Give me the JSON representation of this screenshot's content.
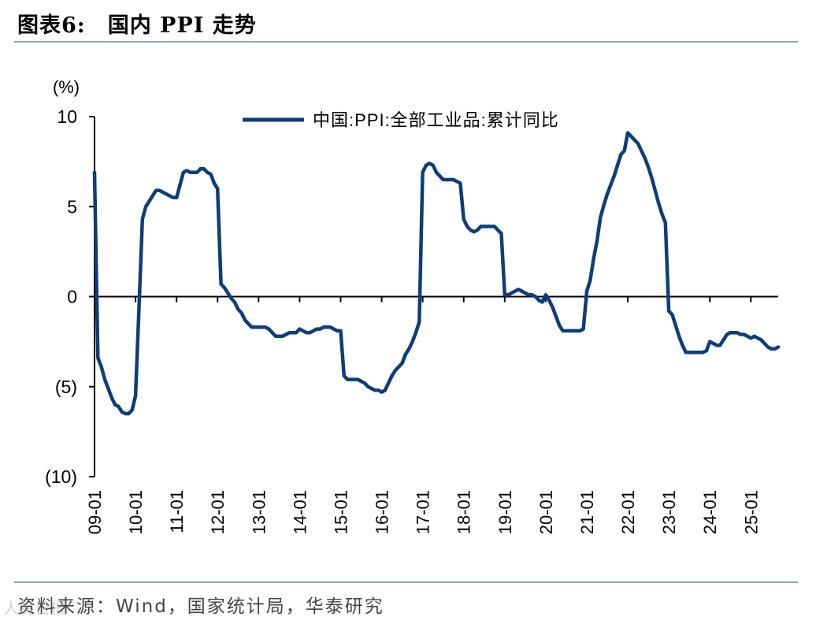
{
  "header": {
    "figure_no": "图表6:",
    "title": "国内 PPI 走势"
  },
  "footer": {
    "source": "资料来源：Wind，国家统计局，华泰研究",
    "watermark": "人民日报"
  },
  "colors": {
    "series": "#0e3d78",
    "rule": "#8fa3bd"
  },
  "chart_data": {
    "type": "line",
    "title": "国内 PPI 走势",
    "unit_label": "(%)",
    "ylim": [
      -10,
      10
    ],
    "yticks": [
      10,
      5,
      0,
      -5,
      -10
    ],
    "ytick_labels": [
      "10",
      "5",
      "0",
      "(5)",
      "(10)"
    ],
    "xlim": [
      "2009-01",
      "2025-09"
    ],
    "xticks": [
      "09-01",
      "10-01",
      "11-01",
      "12-01",
      "13-01",
      "14-01",
      "15-01",
      "16-01",
      "17-01",
      "18-01",
      "19-01",
      "20-01",
      "21-01",
      "22-01",
      "23-01",
      "24-01",
      "25-01"
    ],
    "legend": {
      "position": "top-center"
    },
    "grid": false,
    "series": [
      {
        "name": "中国:PPI:全部工业品:累计同比",
        "points": [
          [
            "2009-01",
            6.9
          ],
          [
            "2009-02",
            -3.4
          ],
          [
            "2009-03",
            -3.9
          ],
          [
            "2009-04",
            -4.6
          ],
          [
            "2009-05",
            -5.1
          ],
          [
            "2009-06",
            -5.6
          ],
          [
            "2009-07",
            -6.0
          ],
          [
            "2009-08",
            -6.1
          ],
          [
            "2009-09",
            -6.4
          ],
          [
            "2009-10",
            -6.5
          ],
          [
            "2009-11",
            -6.5
          ],
          [
            "2009-12",
            -6.3
          ],
          [
            "2010-01",
            -5.5
          ],
          [
            "2010-02",
            -0.7
          ],
          [
            "2010-03",
            4.3
          ],
          [
            "2010-04",
            5.0
          ],
          [
            "2010-05",
            5.3
          ],
          [
            "2010-06",
            5.6
          ],
          [
            "2010-07",
            5.9
          ],
          [
            "2010-08",
            5.9
          ],
          [
            "2010-09",
            5.8
          ],
          [
            "2010-10",
            5.7
          ],
          [
            "2010-11",
            5.6
          ],
          [
            "2010-12",
            5.5
          ],
          [
            "2011-01",
            5.5
          ],
          [
            "2011-02",
            6.2
          ],
          [
            "2011-03",
            6.9
          ],
          [
            "2011-04",
            7.0
          ],
          [
            "2011-05",
            6.9
          ],
          [
            "2011-06",
            6.9
          ],
          [
            "2011-07",
            6.9
          ],
          [
            "2011-08",
            7.1
          ],
          [
            "2011-09",
            7.1
          ],
          [
            "2011-10",
            6.9
          ],
          [
            "2011-11",
            6.8
          ],
          [
            "2011-12",
            6.3
          ],
          [
            "2012-01",
            6.0
          ],
          [
            "2012-02",
            0.7
          ],
          [
            "2012-03",
            0.5
          ],
          [
            "2012-04",
            0.2
          ],
          [
            "2012-05",
            -0.1
          ],
          [
            "2012-06",
            -0.3
          ],
          [
            "2012-07",
            -0.7
          ],
          [
            "2012-08",
            -0.9
          ],
          [
            "2012-09",
            -1.3
          ],
          [
            "2012-10",
            -1.5
          ],
          [
            "2012-11",
            -1.7
          ],
          [
            "2012-12",
            -1.7
          ],
          [
            "2013-01",
            -1.7
          ],
          [
            "2013-02",
            -1.7
          ],
          [
            "2013-03",
            -1.7
          ],
          [
            "2013-04",
            -1.8
          ],
          [
            "2013-05",
            -2.0
          ],
          [
            "2013-06",
            -2.2
          ],
          [
            "2013-07",
            -2.2
          ],
          [
            "2013-08",
            -2.2
          ],
          [
            "2013-09",
            -2.1
          ],
          [
            "2013-10",
            -2.0
          ],
          [
            "2013-11",
            -2.0
          ],
          [
            "2013-12",
            -2.0
          ],
          [
            "2014-01",
            -1.8
          ],
          [
            "2014-02",
            -1.9
          ],
          [
            "2014-03",
            -2.0
          ],
          [
            "2014-04",
            -2.0
          ],
          [
            "2014-05",
            -1.9
          ],
          [
            "2014-06",
            -1.8
          ],
          [
            "2014-07",
            -1.8
          ],
          [
            "2014-08",
            -1.7
          ],
          [
            "2014-09",
            -1.7
          ],
          [
            "2014-10",
            -1.7
          ],
          [
            "2014-11",
            -1.8
          ],
          [
            "2014-12",
            -1.9
          ],
          [
            "2015-01",
            -1.9
          ],
          [
            "2015-02",
            -4.4
          ],
          [
            "2015-03",
            -4.6
          ],
          [
            "2015-04",
            -4.6
          ],
          [
            "2015-05",
            -4.6
          ],
          [
            "2015-06",
            -4.6
          ],
          [
            "2015-07",
            -4.7
          ],
          [
            "2015-08",
            -4.8
          ],
          [
            "2015-09",
            -5.0
          ],
          [
            "2015-10",
            -5.1
          ],
          [
            "2015-11",
            -5.2
          ],
          [
            "2015-12",
            -5.2
          ],
          [
            "2016-01",
            -5.3
          ],
          [
            "2016-02",
            -5.2
          ],
          [
            "2016-03",
            -4.8
          ],
          [
            "2016-04",
            -4.4
          ],
          [
            "2016-05",
            -4.1
          ],
          [
            "2016-06",
            -3.9
          ],
          [
            "2016-07",
            -3.7
          ],
          [
            "2016-08",
            -3.2
          ],
          [
            "2016-09",
            -2.9
          ],
          [
            "2016-10",
            -2.5
          ],
          [
            "2016-11",
            -2.0
          ],
          [
            "2016-12",
            -1.4
          ],
          [
            "2017-01",
            6.9
          ],
          [
            "2017-02",
            7.3
          ],
          [
            "2017-03",
            7.4
          ],
          [
            "2017-04",
            7.3
          ],
          [
            "2017-05",
            6.9
          ],
          [
            "2017-06",
            6.7
          ],
          [
            "2017-07",
            6.5
          ],
          [
            "2017-08",
            6.5
          ],
          [
            "2017-09",
            6.5
          ],
          [
            "2017-10",
            6.5
          ],
          [
            "2017-11",
            6.4
          ],
          [
            "2017-12",
            6.3
          ],
          [
            "2018-01",
            4.3
          ],
          [
            "2018-02",
            3.9
          ],
          [
            "2018-03",
            3.7
          ],
          [
            "2018-04",
            3.6
          ],
          [
            "2018-05",
            3.7
          ],
          [
            "2018-06",
            3.9
          ],
          [
            "2018-07",
            3.9
          ],
          [
            "2018-08",
            3.9
          ],
          [
            "2018-09",
            3.9
          ],
          [
            "2018-10",
            3.9
          ],
          [
            "2018-11",
            3.7
          ],
          [
            "2018-12",
            3.5
          ],
          [
            "2019-01",
            0.1
          ],
          [
            "2019-02",
            0.1
          ],
          [
            "2019-03",
            0.2
          ],
          [
            "2019-04",
            0.3
          ],
          [
            "2019-05",
            0.4
          ],
          [
            "2019-06",
            0.3
          ],
          [
            "2019-07",
            0.2
          ],
          [
            "2019-08",
            0.1
          ],
          [
            "2019-09",
            0.1
          ],
          [
            "2019-10",
            0.0
          ],
          [
            "2019-11",
            -0.2
          ],
          [
            "2019-12",
            -0.3
          ],
          [
            "2020-01",
            0.1
          ],
          [
            "2020-02",
            -0.2
          ],
          [
            "2020-03",
            -0.6
          ],
          [
            "2020-04",
            -1.1
          ],
          [
            "2020-05",
            -1.6
          ],
          [
            "2020-06",
            -1.9
          ],
          [
            "2020-07",
            -1.9
          ],
          [
            "2020-08",
            -1.9
          ],
          [
            "2020-09",
            -1.9
          ],
          [
            "2020-10",
            -1.9
          ],
          [
            "2020-11",
            -1.9
          ],
          [
            "2020-12",
            -1.8
          ],
          [
            "2021-01",
            0.3
          ],
          [
            "2021-02",
            0.9
          ],
          [
            "2021-03",
            2.1
          ],
          [
            "2021-04",
            3.1
          ],
          [
            "2021-05",
            4.4
          ],
          [
            "2021-06",
            5.1
          ],
          [
            "2021-07",
            5.7
          ],
          [
            "2021-08",
            6.2
          ],
          [
            "2021-09",
            6.7
          ],
          [
            "2021-10",
            7.3
          ],
          [
            "2021-11",
            7.9
          ],
          [
            "2021-12",
            8.1
          ],
          [
            "2022-01",
            9.1
          ],
          [
            "2022-02",
            8.9
          ],
          [
            "2022-03",
            8.7
          ],
          [
            "2022-04",
            8.5
          ],
          [
            "2022-05",
            8.1
          ],
          [
            "2022-06",
            7.7
          ],
          [
            "2022-07",
            7.2
          ],
          [
            "2022-08",
            6.6
          ],
          [
            "2022-09",
            5.9
          ],
          [
            "2022-10",
            5.2
          ],
          [
            "2022-11",
            4.6
          ],
          [
            "2022-12",
            4.1
          ],
          [
            "2023-01",
            -0.8
          ],
          [
            "2023-02",
            -1.0
          ],
          [
            "2023-03",
            -1.6
          ],
          [
            "2023-04",
            -2.2
          ],
          [
            "2023-05",
            -2.7
          ],
          [
            "2023-06",
            -3.1
          ],
          [
            "2023-07",
            -3.1
          ],
          [
            "2023-08",
            -3.1
          ],
          [
            "2023-09",
            -3.1
          ],
          [
            "2023-10",
            -3.1
          ],
          [
            "2023-11",
            -3.1
          ],
          [
            "2023-12",
            -3.0
          ],
          [
            "2024-01",
            -2.5
          ],
          [
            "2024-02",
            -2.6
          ],
          [
            "2024-03",
            -2.7
          ],
          [
            "2024-04",
            -2.7
          ],
          [
            "2024-05",
            -2.4
          ],
          [
            "2024-06",
            -2.1
          ],
          [
            "2024-07",
            -2.0
          ],
          [
            "2024-08",
            -2.0
          ],
          [
            "2024-09",
            -2.0
          ],
          [
            "2024-10",
            -2.1
          ],
          [
            "2024-11",
            -2.1
          ],
          [
            "2024-12",
            -2.2
          ],
          [
            "2025-01",
            -2.3
          ],
          [
            "2025-02",
            -2.2
          ],
          [
            "2025-03",
            -2.3
          ],
          [
            "2025-04",
            -2.4
          ],
          [
            "2025-05",
            -2.6
          ],
          [
            "2025-06",
            -2.8
          ],
          [
            "2025-07",
            -2.9
          ],
          [
            "2025-08",
            -2.9
          ],
          [
            "2025-09",
            -2.8
          ]
        ]
      }
    ]
  }
}
